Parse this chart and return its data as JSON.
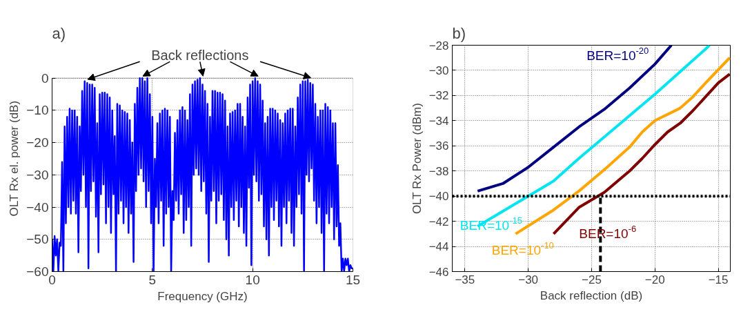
{
  "chart_data": [
    {
      "type": "line",
      "title": "a)",
      "xlabel": "Frequency (GHz)",
      "ylabel": "OLT Rx el. power (dB)",
      "xlim": [
        0,
        15
      ],
      "ylim": [
        -60,
        0
      ],
      "xticks": [
        0,
        5,
        10,
        15
      ],
      "yticks": [
        -60,
        -50,
        -40,
        -30,
        -20,
        -10,
        0
      ],
      "grid": true,
      "annotations": [
        {
          "text": "Back reflections",
          "x": 7.375,
          "y": 0
        }
      ],
      "series": [
        {
          "color": "#0000ff",
          "x": [
            0,
            0.0625,
            0.125,
            0.1875,
            0.25,
            0.3125,
            0.375,
            0.4375,
            0.5,
            0.5625,
            0.625,
            0.6875,
            0.75,
            0.8125,
            0.875,
            0.9375,
            1,
            1.0625,
            1.125,
            1.1875,
            1.25,
            1.3125,
            1.375,
            1.4375,
            1.5,
            1.5625,
            1.625,
            1.6875,
            1.75,
            1.8125,
            1.875,
            1.9375,
            2,
            2.0625,
            2.125,
            2.1875,
            2.25,
            2.3125,
            2.375,
            2.4375,
            2.5,
            2.5625,
            2.625,
            2.6875,
            2.75,
            2.8125,
            2.875,
            2.9375,
            3,
            3.0625,
            3.125,
            3.1875,
            3.25,
            3.3125,
            3.375,
            3.4375,
            3.5,
            3.5625,
            3.625,
            3.6875,
            3.75,
            3.8125,
            3.875,
            3.9375,
            4,
            4.0625,
            4.125,
            4.1875,
            4.25,
            4.3125,
            4.375,
            4.4375,
            4.5,
            4.5625,
            4.625,
            4.6875,
            4.75,
            4.8125,
            4.875,
            4.9375,
            5,
            5.0625,
            5.125,
            5.1875,
            5.25,
            5.3125,
            5.375,
            5.4375,
            5.5,
            5.5625,
            5.625,
            5.6875,
            5.75,
            5.8125,
            5.875,
            5.9375,
            6,
            6.0625,
            6.125,
            6.1875,
            6.25,
            6.3125,
            6.375,
            6.4375,
            6.5,
            6.5625,
            6.625,
            6.6875,
            6.75,
            6.8125,
            6.875,
            6.9375,
            7,
            7.0625,
            7.125,
            7.1875,
            7.25,
            7.3125,
            7.375,
            7.4375,
            7.5,
            7.5625,
            7.625,
            7.6875,
            7.75,
            7.8125,
            7.875,
            7.9375,
            8,
            8.0625,
            8.125,
            8.1875,
            8.25,
            8.3125,
            8.375,
            8.4375,
            8.5,
            8.5625,
            8.625,
            8.6875,
            8.75,
            8.8125,
            8.875,
            8.9375,
            9,
            9.0625,
            9.125,
            9.1875,
            9.25,
            9.3125,
            9.375,
            9.4375,
            9.5,
            9.5625,
            9.625,
            9.6875,
            9.75,
            9.8125,
            9.875,
            9.9375,
            10,
            10.0625,
            10.125,
            10.1875,
            10.25,
            10.3125,
            10.375,
            10.4375,
            10.5,
            10.5625,
            10.625,
            10.6875,
            10.75,
            10.8125,
            10.875,
            10.9375,
            11,
            11.0625,
            11.125,
            11.1875,
            11.25,
            11.3125,
            11.375,
            11.4375,
            11.5,
            11.5625,
            11.625,
            11.6875,
            11.75,
            11.8125,
            11.875,
            11.9375,
            12,
            12.0625,
            12.125,
            12.1875,
            12.25,
            12.3125,
            12.375,
            12.4375,
            12.5,
            12.5625,
            12.625,
            12.6875,
            12.75,
            12.8125,
            12.875,
            12.9375,
            13,
            13.0625,
            13.125,
            13.1875,
            13.25,
            13.3125,
            13.375,
            13.4375,
            13.5,
            13.5625,
            13.625,
            13.6875,
            13.75,
            13.8125,
            13.875,
            13.9375,
            14,
            14.0625,
            14.125,
            14.1875,
            14.25,
            14.3125,
            14.375,
            14.4375,
            14.5,
            14.5625,
            14.625,
            14.6875,
            14.75,
            14.8125,
            14.875,
            14.9375,
            15
          ],
          "values": [
            -50,
            -60,
            -49,
            -55,
            -50,
            -60,
            -51,
            -52,
            -26,
            -60,
            -15,
            -45,
            -12,
            -40,
            -9.5,
            -42,
            -10,
            -38,
            -10,
            -42,
            -12,
            -54,
            -15,
            -35,
            -4,
            -30,
            -1,
            -40,
            -1.5,
            -59,
            -2,
            -35,
            -2,
            -32,
            -3,
            -43,
            -14,
            -54,
            -5,
            -36,
            -4.5,
            -33,
            -4.5,
            -45,
            -5,
            -40,
            -6,
            -48,
            -10,
            -36,
            -18,
            -60,
            -8,
            -42,
            -8.5,
            -38,
            -10,
            -45,
            -10.5,
            -40,
            -11,
            -48,
            -13,
            -42,
            -20,
            -57,
            -8,
            -35,
            -3,
            -30,
            0,
            -28,
            0,
            -32,
            -1,
            -40,
            0,
            -35,
            -5,
            -45,
            -12,
            -60,
            -25,
            -40,
            -14,
            -45,
            -11,
            -38,
            -10,
            -52,
            -9.5,
            -42,
            -10,
            -40,
            -12,
            -60,
            -35,
            -44,
            -17,
            -38,
            -13,
            -42,
            -10,
            -36,
            -9,
            -48,
            -10,
            -44,
            -13,
            -40,
            -5,
            -52,
            -2,
            -30,
            -1,
            -28,
            -0.5,
            -30,
            0,
            -35,
            -2,
            -32,
            -4,
            -42,
            -8,
            -57,
            -12,
            -38,
            -4,
            -35,
            -4,
            -45,
            -4.5,
            -38,
            -4.5,
            -36,
            -5,
            -44,
            -7,
            -50,
            -15,
            -55,
            -11,
            -40,
            -10.5,
            -44,
            -10,
            -38,
            -8,
            -46,
            -8,
            -40,
            -12,
            -48,
            -15,
            -52,
            -6,
            -34,
            -2,
            -58,
            -1,
            -30,
            0,
            -32,
            -1,
            -38,
            -2,
            -36,
            -7,
            -46,
            -14,
            -50,
            -12,
            -55,
            -9.5,
            -40,
            -9.5,
            -44,
            -10,
            -38,
            -11,
            -46,
            -13,
            -52,
            -14,
            -40,
            -11,
            -45,
            -10,
            -38,
            -9.5,
            -48,
            -9.5,
            -52,
            -15,
            -40,
            -6,
            -36,
            -2,
            -42,
            -1,
            -60,
            -1,
            -30,
            -0.5,
            -32,
            -1.5,
            -28,
            -2,
            -38,
            -8,
            -45,
            -12,
            -40,
            -10,
            -48,
            -10,
            -60,
            -8,
            -42,
            -9,
            -45,
            -10,
            -40,
            -14,
            -50,
            -14,
            -46,
            -27,
            -52,
            -45,
            -60,
            -56,
            -60,
            -56,
            -58,
            -56,
            -60,
            -58,
            -59,
            -59
          ]
        }
      ]
    },
    {
      "type": "line",
      "title": "b)",
      "xlabel": "Back reflection (dB)",
      "ylabel": "OLT Rx Power (dBm)",
      "xlim": [
        -36,
        -14.05
      ],
      "ylim": [
        -46,
        -28
      ],
      "xticks": [
        -35,
        -30,
        -25,
        -20,
        -15
      ],
      "yticks": [
        -46,
        -44,
        -42,
        -40,
        -38,
        -36,
        -34,
        -32,
        -30,
        -28
      ],
      "grid": true,
      "annotations": [
        "BER=10$^{-20}$",
        "BER=10$^{-15}$",
        "BER=10$^{-10}$",
        "BER=10$^{-6}$"
      ],
      "ref_lines": [
        {
          "axis": "y",
          "value": -40,
          "color": "#000000",
          "line_style": "dotted"
        }
      ],
      "series": [
        {
          "color": "#000080",
          "x": [
            -34,
            -32,
            -30,
            -28,
            -26,
            -24,
            -22,
            -20,
            -18.7
          ],
          "values": [
            -39.6,
            -39,
            -37.7,
            -36.1,
            -34.5,
            -33.1,
            -31.4,
            -29.5,
            -28
          ]
        },
        {
          "color": "#00e5f0",
          "x": [
            -34,
            -32,
            -30,
            -28,
            -26,
            -24,
            -22,
            -20,
            -18,
            -16,
            -15.7
          ],
          "values": [
            -42.4,
            -41.2,
            -40,
            -38.8,
            -37,
            -35.3,
            -33.6,
            -31.9,
            -30.1,
            -28.3,
            -28
          ]
        },
        {
          "color": "#ffa500",
          "x": [
            -31,
            -28,
            -26,
            -24,
            -22,
            -21,
            -20,
            -18,
            -17,
            -16,
            -14.1
          ],
          "values": [
            -43,
            -41.1,
            -39.6,
            -37.9,
            -36.1,
            -34.9,
            -34,
            -33,
            -32.1,
            -31,
            -29
          ]
        },
        {
          "color": "#800000",
          "x": [
            -28,
            -26,
            -24,
            -22,
            -21,
            -20,
            -19,
            -18,
            -17,
            -15,
            -14.1
          ],
          "values": [
            -43,
            -40.9,
            -39.7,
            -38,
            -37,
            -35.9,
            -34.9,
            -34.2,
            -33.2,
            -31,
            -30.3
          ]
        },
        {
          "color": "#000000",
          "line_style": "dashed",
          "x": [
            -24.3,
            -24.3
          ],
          "values": [
            -46,
            -40
          ]
        }
      ]
    }
  ]
}
